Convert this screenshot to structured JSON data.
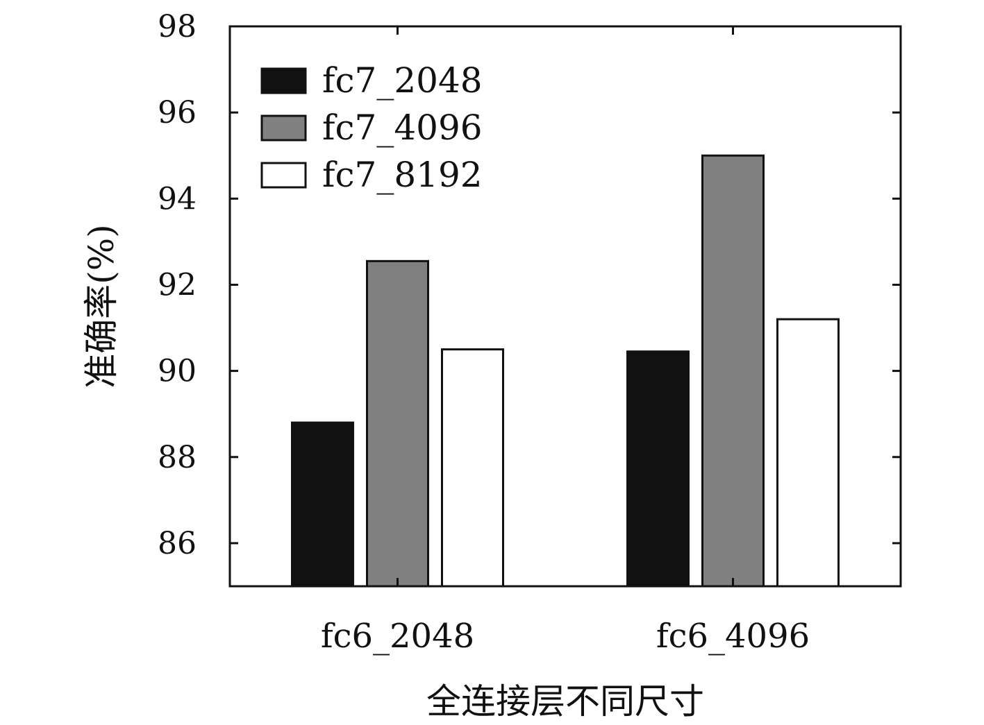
{
  "chart_data": {
    "type": "bar",
    "title": "",
    "xlabel": "全连接层不同尺寸",
    "ylabel": "准确率(%)",
    "categories": [
      "fc6_2048",
      "fc6_4096"
    ],
    "series": [
      {
        "name": "fc7_2048",
        "color": "#111111",
        "values": [
          88.8,
          90.45
        ]
      },
      {
        "name": "fc7_4096",
        "color": "#808080",
        "values": [
          92.55,
          95.0
        ]
      },
      {
        "name": "fc7_8192",
        "color": "#ffffff",
        "values": [
          90.5,
          91.2
        ]
      }
    ],
    "ylim": [
      85,
      98
    ],
    "yticks": [
      86,
      88,
      90,
      92,
      94,
      96,
      98
    ],
    "grid": false,
    "legend_position": "top-left"
  }
}
